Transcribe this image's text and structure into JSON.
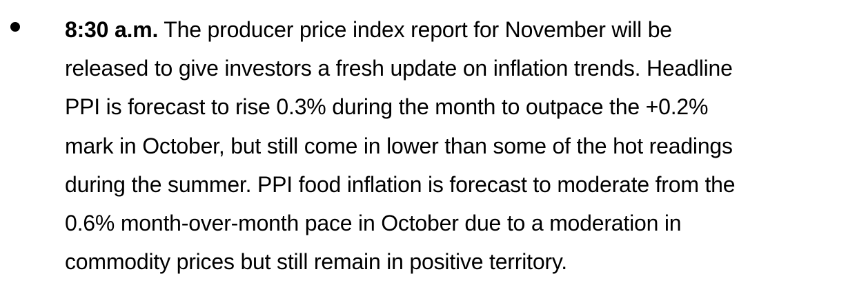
{
  "bullet_item": {
    "time": "8:30 a.m.",
    "lines": [
      " The producer price index report for November will be",
      "released to give investors a fresh update on inflation trends. Headline",
      "PPI is forecast to rise 0.3% during the month to outpace the +0.2%",
      "mark in October, but still come in lower than some of the hot readings",
      "during the summer. PPI food inflation is forecast to moderate from the",
      "0.6% month-over-month pace in October due to a moderation in",
      "commodity prices but still remain in positive territory."
    ]
  }
}
